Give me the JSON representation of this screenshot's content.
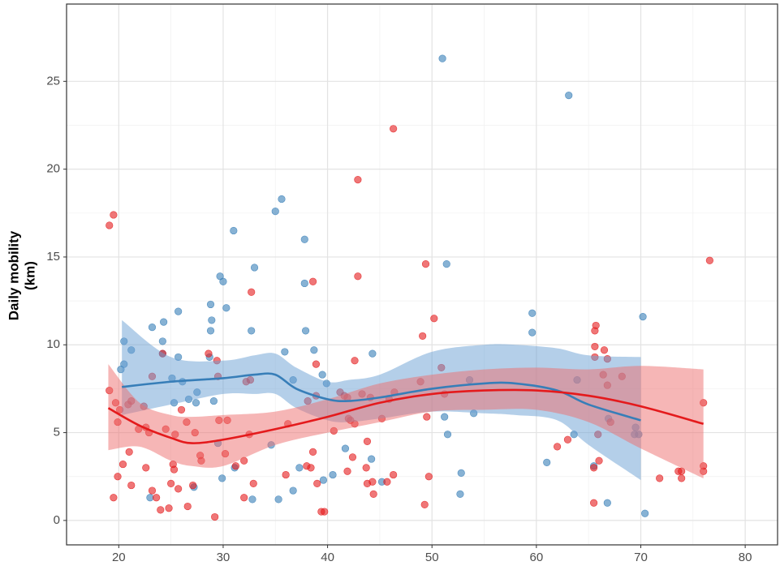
{
  "chart_data": {
    "type": "scatter",
    "ylabel": [
      "Daily mobility",
      "(km)"
    ],
    "xlim": [
      15,
      83.1
    ],
    "ylim": [
      -1.39,
      29.4
    ],
    "xticks": [
      20,
      30,
      40,
      50,
      60,
      70,
      80
    ],
    "yticks": [
      0,
      5,
      10,
      15,
      20,
      25
    ],
    "grid": true,
    "minor_grid": true,
    "series": [
      {
        "color": "#377eb8",
        "x": [
          20.2,
          20.5,
          20.5,
          21.2,
          23.2,
          24.3,
          24.2,
          24.2,
          25.7,
          25.1,
          25.7,
          26.1,
          25.3,
          26.7,
          27.5,
          27.4,
          23.0,
          27.2,
          28.8,
          28.9,
          28.8,
          28.7,
          29.1,
          29.7,
          30.0,
          30.3,
          29.5,
          29.9,
          31.0,
          33.0,
          32.7,
          31.1,
          32.8,
          35.0,
          35.6,
          35.9,
          34.6,
          35.3,
          37.8,
          37.8,
          37.9,
          36.7,
          37.3,
          36.7,
          38.7,
          39.5,
          39.9,
          39.6,
          40.5,
          41.7,
          44.3,
          44.2,
          45.2,
          51.0,
          51.4,
          51.2,
          51.5,
          52.8,
          52.7,
          53.6,
          54.0,
          59.6,
          59.6,
          61.0,
          63.1,
          63.6,
          63.9,
          65.5,
          66.8,
          66.9,
          69.5,
          69.8,
          70.2,
          70.4,
          69.4
        ],
        "values": [
          8.6,
          8.9,
          10.2,
          9.7,
          11.0,
          11.3,
          10.2,
          9.5,
          11.9,
          8.1,
          9.3,
          7.9,
          6.7,
          6.9,
          7.3,
          6.7,
          1.3,
          1.9,
          12.3,
          11.4,
          10.8,
          9.3,
          6.8,
          13.9,
          13.6,
          12.1,
          4.4,
          2.4,
          16.5,
          14.4,
          10.8,
          3.0,
          1.2,
          17.6,
          18.3,
          9.6,
          4.3,
          1.2,
          13.5,
          16.0,
          10.8,
          8.0,
          3.0,
          1.7,
          9.7,
          8.3,
          7.8,
          2.3,
          2.6,
          4.1,
          9.5,
          3.5,
          2.2,
          26.3,
          14.6,
          5.9,
          4.9,
          2.7,
          1.5,
          8.0,
          6.1,
          11.8,
          10.7,
          3.3,
          24.2,
          4.9,
          8.0,
          3.1,
          1.0,
          5.8,
          5.3,
          4.9,
          11.6,
          0.4,
          4.9
        ]
      },
      {
        "color": "#e41a1c",
        "x": [
          19.1,
          19.5,
          19.1,
          19.7,
          19.5,
          19.9,
          20.1,
          19.9,
          20.4,
          20.9,
          21.2,
          21.2,
          21.0,
          21.9,
          22.4,
          22.6,
          22.9,
          22.6,
          23.2,
          23.2,
          23.6,
          24.0,
          24.2,
          24.5,
          24.8,
          25.0,
          25.2,
          25.3,
          25.4,
          25.7,
          26.0,
          26.5,
          26.6,
          27.1,
          27.3,
          27.8,
          27.9,
          28.6,
          29.4,
          29.6,
          29.5,
          29.2,
          30.4,
          30.2,
          31.2,
          32.0,
          32.2,
          32.6,
          32.7,
          32.5,
          32.9,
          32.0,
          36.0,
          36.2,
          38.0,
          38.1,
          38.4,
          38.6,
          38.6,
          38.9,
          38.9,
          39.0,
          39.4,
          39.7,
          40.6,
          41.2,
          41.6,
          41.9,
          41.9,
          42.0,
          42.4,
          42.2,
          42.6,
          42.6,
          42.9,
          42.9,
          43.3,
          43.7,
          43.8,
          44.1,
          43.8,
          44.3,
          44.4,
          45.2,
          45.7,
          45.9,
          46.3,
          46.3,
          46.4,
          48.9,
          49.1,
          49.4,
          49.3,
          49.5,
          49.7,
          50.2,
          50.9,
          51.2,
          62.0,
          63.0,
          65.6,
          65.6,
          65.7,
          65.6,
          65.5,
          65.5,
          65.9,
          66.0,
          66.4,
          66.5,
          66.8,
          66.8,
          67.1,
          68.2,
          71.8,
          73.9,
          73.9,
          73.6,
          76.0,
          76.0,
          76.0,
          76.6
        ],
        "values": [
          16.8,
          17.4,
          7.4,
          6.7,
          1.3,
          2.5,
          6.3,
          5.6,
          3.2,
          6.6,
          6.8,
          2.0,
          3.9,
          5.2,
          6.5,
          5.3,
          5.0,
          3.0,
          8.2,
          1.7,
          1.3,
          0.6,
          9.5,
          5.2,
          0.7,
          2.1,
          3.2,
          2.9,
          4.9,
          1.8,
          6.3,
          5.6,
          0.8,
          2.0,
          5.0,
          3.7,
          3.4,
          9.5,
          9.1,
          5.7,
          8.2,
          0.2,
          5.7,
          3.8,
          3.1,
          1.3,
          7.9,
          8.0,
          13.0,
          4.9,
          2.1,
          3.4,
          2.6,
          5.5,
          3.1,
          6.8,
          3.0,
          3.9,
          13.6,
          8.9,
          7.1,
          2.1,
          0.5,
          0.5,
          5.1,
          7.3,
          7.1,
          2.8,
          7.0,
          5.8,
          3.6,
          5.7,
          9.1,
          5.5,
          19.4,
          13.9,
          7.2,
          3.0,
          4.5,
          7.0,
          2.1,
          2.2,
          1.5,
          5.8,
          2.2,
          6.9,
          22.3,
          2.6,
          7.3,
          7.9,
          10.5,
          14.6,
          0.9,
          5.9,
          2.5,
          11.5,
          8.7,
          7.2,
          4.2,
          4.6,
          9.9,
          10.8,
          11.1,
          9.3,
          3.0,
          1.0,
          4.9,
          3.4,
          8.3,
          9.7,
          9.2,
          7.7,
          5.6,
          8.2,
          2.4,
          2.8,
          2.4,
          2.8,
          3.1,
          2.8,
          6.7,
          14.8
        ]
      }
    ],
    "smooth": [
      {
        "color": "#377eb8",
        "fill": "#6a9fd4",
        "x": [
          20.3,
          25,
          30,
          33,
          35,
          37,
          40,
          42,
          45,
          50,
          55,
          58,
          62,
          65,
          70
        ],
        "values": [
          7.6,
          7.9,
          8.1,
          8.3,
          8.3,
          7.5,
          6.9,
          6.8,
          7.0,
          7.5,
          7.8,
          7.8,
          7.4,
          6.6,
          5.7
        ],
        "lower": [
          6.0,
          6.6,
          7.2,
          7.2,
          7.2,
          6.4,
          5.7,
          5.6,
          5.8,
          6.2,
          6.1,
          6.0,
          5.7,
          4.3,
          2.3
        ],
        "upper": [
          11.4,
          9.3,
          9.1,
          9.4,
          9.5,
          8.7,
          7.9,
          8.0,
          8.3,
          9.6,
          10.0,
          10.0,
          9.8,
          9.4,
          9.3
        ]
      },
      {
        "color": "#e41a1c",
        "fill": "#ee6e6e",
        "x": [
          19,
          22,
          25,
          27,
          30,
          35,
          40,
          45,
          50,
          55,
          60,
          65,
          70,
          76
        ],
        "values": [
          6.4,
          5.4,
          4.7,
          4.4,
          4.6,
          5.2,
          5.9,
          6.7,
          7.2,
          7.4,
          7.4,
          7.1,
          6.5,
          5.5
        ],
        "lower": [
          4.0,
          4.2,
          3.4,
          3.1,
          3.1,
          4.3,
          5.0,
          5.6,
          6.2,
          6.3,
          6.3,
          5.6,
          4.1,
          2.4
        ],
        "upper": [
          8.9,
          6.7,
          6.0,
          5.9,
          6.0,
          6.2,
          6.9,
          7.8,
          8.3,
          8.6,
          8.7,
          8.6,
          8.8,
          8.6
        ]
      }
    ]
  }
}
